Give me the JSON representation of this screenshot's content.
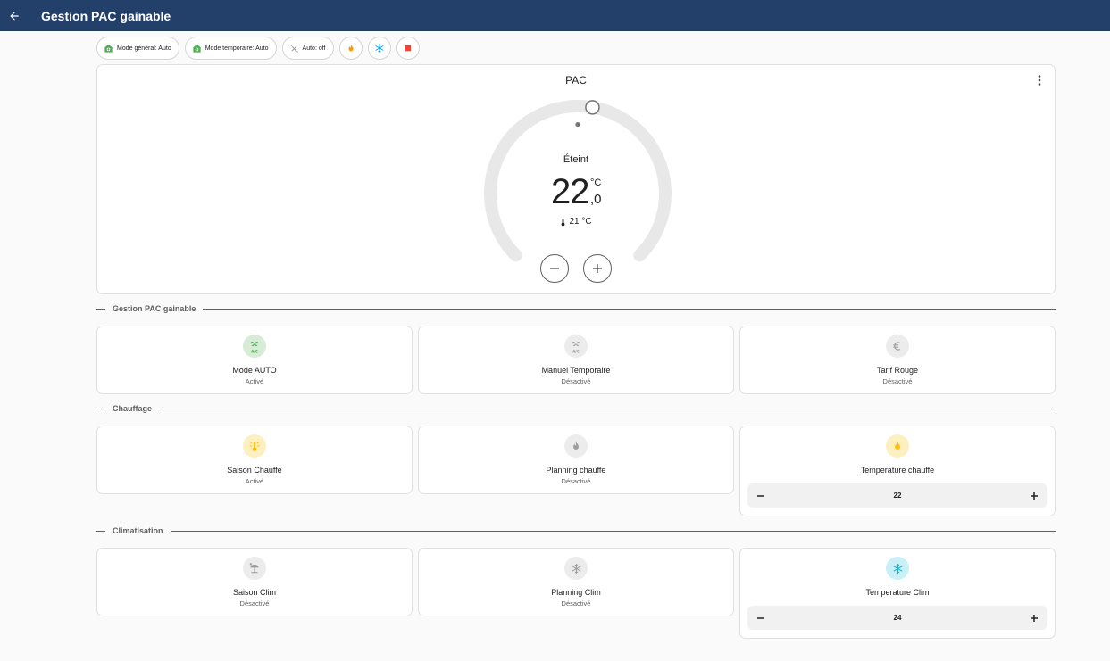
{
  "header": {
    "title": "Gestion PAC gainable",
    "back_icon": "arrow-left-icon"
  },
  "chips": [
    {
      "label": "Mode général: Auto",
      "icon": "heat-pump-icon",
      "color": "#4caf50"
    },
    {
      "label": "Mode temporaire: Auto",
      "icon": "heat-pump-icon",
      "color": "#4caf50"
    },
    {
      "label": "Auto: off",
      "icon": "auto-off-icon",
      "color": "#9e9e9e"
    },
    {
      "label": "",
      "icon": "fire-icon",
      "color": "#ff9800"
    },
    {
      "label": "",
      "icon": "snowflake-icon",
      "color": "#03a9f4"
    },
    {
      "label": "",
      "icon": "stop-icon",
      "color": "#f44336"
    }
  ],
  "thermostat": {
    "name": "PAC",
    "state": "Éteint",
    "target_integer": "22",
    "target_decimal": ",0",
    "unit": "°C",
    "current": "21 °C",
    "dial_range": [
      7,
      35
    ],
    "target_value": 22,
    "current_value": 21
  },
  "sections": [
    {
      "title": "Gestion PAC gainable",
      "tiles": [
        {
          "name": "Mode AUTO",
          "state": "Activé",
          "icon": "air-conditioner-icon",
          "color": "#4caf50"
        },
        {
          "name": "Manuel Temporaire",
          "state": "Désactivé",
          "icon": "air-conditioner-icon",
          "color": "#9e9e9e"
        },
        {
          "name": "Tarif Rouge",
          "state": "Désactivé",
          "icon": "euro-icon",
          "color": "#9e9e9e"
        }
      ]
    },
    {
      "title": "Chauffage",
      "tiles": [
        {
          "name": "Saison Chauffe",
          "state": "Activé",
          "icon": "sun-thermometer-icon",
          "color": "#ffc107"
        },
        {
          "name": "Planning chauffe",
          "state": "Désactivé",
          "icon": "fire-icon",
          "color": "#9e9e9e"
        },
        {
          "name": "Temperature chauffe",
          "value": "22",
          "icon": "fire-icon",
          "color": "#ffc107"
        }
      ]
    },
    {
      "title": "Climatisation",
      "tiles": [
        {
          "name": "Saison Clim",
          "state": "Désactivé",
          "icon": "beach-icon",
          "color": "#9e9e9e"
        },
        {
          "name": "Planning Clim",
          "state": "Désactivé",
          "icon": "snowflake-icon",
          "color": "#9e9e9e"
        },
        {
          "name": "Temperature Clim",
          "value": "24",
          "icon": "snowflake-icon",
          "color": "#00bcd4"
        }
      ]
    }
  ]
}
